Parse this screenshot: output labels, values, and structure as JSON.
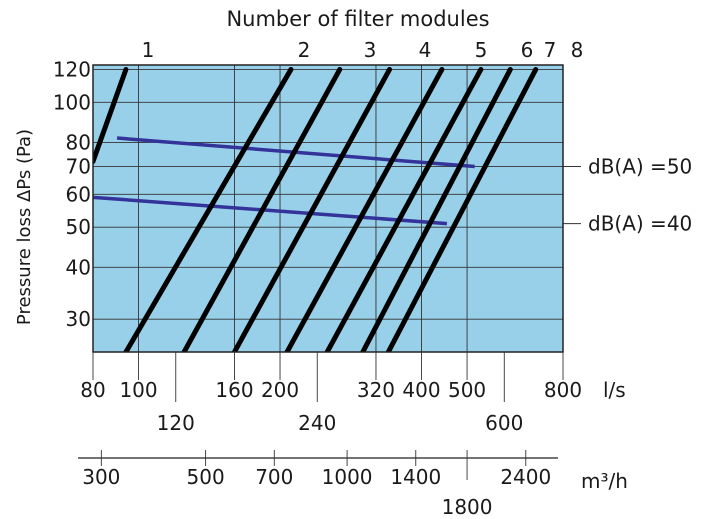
{
  "chart_data": {
    "type": "line",
    "title": "Number of filter modules",
    "ylabel": "Pressure loss ΔPs (Pa)",
    "y_scale": "log",
    "x_scale": "log",
    "ylim": [
      25,
      123
    ],
    "xlim_ls": [
      80,
      800
    ],
    "grid": true,
    "background": "#98d0ea",
    "colors": {
      "module_lines": "#000000",
      "db_lines": "#33339a"
    },
    "y_ticks": [
      30,
      40,
      50,
      60,
      70,
      80,
      100,
      120
    ],
    "x_axes": [
      {
        "unit": "l/s",
        "ticks": [
          80,
          100,
          160,
          200,
          320,
          400,
          500,
          800
        ],
        "ticks_row2": [
          120,
          240,
          600
        ]
      },
      {
        "unit": "m³/h",
        "ticks": [
          300,
          500,
          700,
          1000,
          1400,
          2400
        ],
        "ticks_row2": [
          1800
        ]
      }
    ],
    "series": [
      {
        "name": "1",
        "points": [
          [
            80,
            72
          ],
          [
            94,
            120
          ]
        ]
      },
      {
        "name": "2",
        "points": [
          [
            94,
            25
          ],
          [
            211,
            120
          ]
        ]
      },
      {
        "name": "3",
        "points": [
          [
            125,
            25
          ],
          [
            268,
            120
          ]
        ]
      },
      {
        "name": "4",
        "points": [
          [
            160,
            25
          ],
          [
            342,
            120
          ]
        ]
      },
      {
        "name": "5",
        "points": [
          [
            207,
            25
          ],
          [
            442,
            120
          ]
        ]
      },
      {
        "name": "6",
        "points": [
          [
            252,
            25
          ],
          [
            535,
            120
          ]
        ]
      },
      {
        "name": "7",
        "points": [
          [
            300,
            25
          ],
          [
            618,
            120
          ]
        ]
      },
      {
        "name": "8",
        "points": [
          [
            340,
            25
          ],
          [
            700,
            120
          ]
        ]
      }
    ],
    "db_lines": [
      {
        "label": "dB(A) =50",
        "points": [
          [
            90,
            82
          ],
          [
            519,
            70
          ]
        ]
      },
      {
        "label": "dB(A) =40",
        "points": [
          [
            80,
            59
          ],
          [
            453,
            51
          ]
        ]
      }
    ]
  }
}
